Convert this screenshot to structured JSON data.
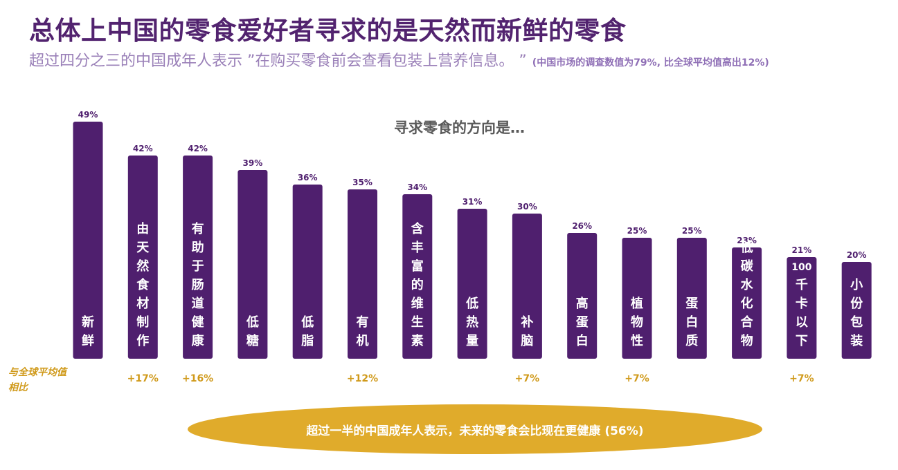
{
  "title": "总体上中国的零食爱好者寻求的是天然而新鲜的零食",
  "subtitle": "超过四分之三的中国成年人表示 ”在购买零食前会查看包装上营养信息。 ”",
  "subtitle_note": "(中国市场的调查数值为79%, 比全球平均值高出12%)",
  "side_label": "与全球平均值相比",
  "footer_note": "超过一半的中国成年人表示，未来的零食会比现在更健康 (56%)",
  "colors": {
    "bar": "#4f1f6e",
    "accent": "#d09a1b",
    "ellipse": "#e0ab2b",
    "title": "#52236f"
  },
  "chart_data": {
    "type": "bar",
    "title": "寻求零食的方向是…",
    "categories": [
      "新鲜",
      "由天然食材制作",
      "有助于肠道健康",
      "低糖",
      "低脂",
      "有机",
      "含丰富的维生素",
      "低热量",
      "补脑",
      "高蛋白",
      "植物性",
      "蛋白质",
      "低碳水化合物",
      "100千卡以下",
      "小份包装"
    ],
    "values": [
      49,
      42,
      42,
      39,
      36,
      35,
      34,
      31,
      30,
      26,
      25,
      25,
      23,
      21,
      20
    ],
    "value_labels": [
      "49%",
      "42%",
      "42%",
      "39%",
      "36%",
      "35%",
      "34%",
      "31%",
      "30%",
      "26%",
      "25%",
      "25%",
      "23%",
      "21%",
      "20%"
    ],
    "global_comparison": [
      "",
      "+17%",
      "+16%",
      "",
      "",
      "+12%",
      "",
      "",
      "+7%",
      "",
      "+7%",
      "",
      "",
      "+7%",
      ""
    ],
    "ylim": [
      0,
      49
    ]
  }
}
